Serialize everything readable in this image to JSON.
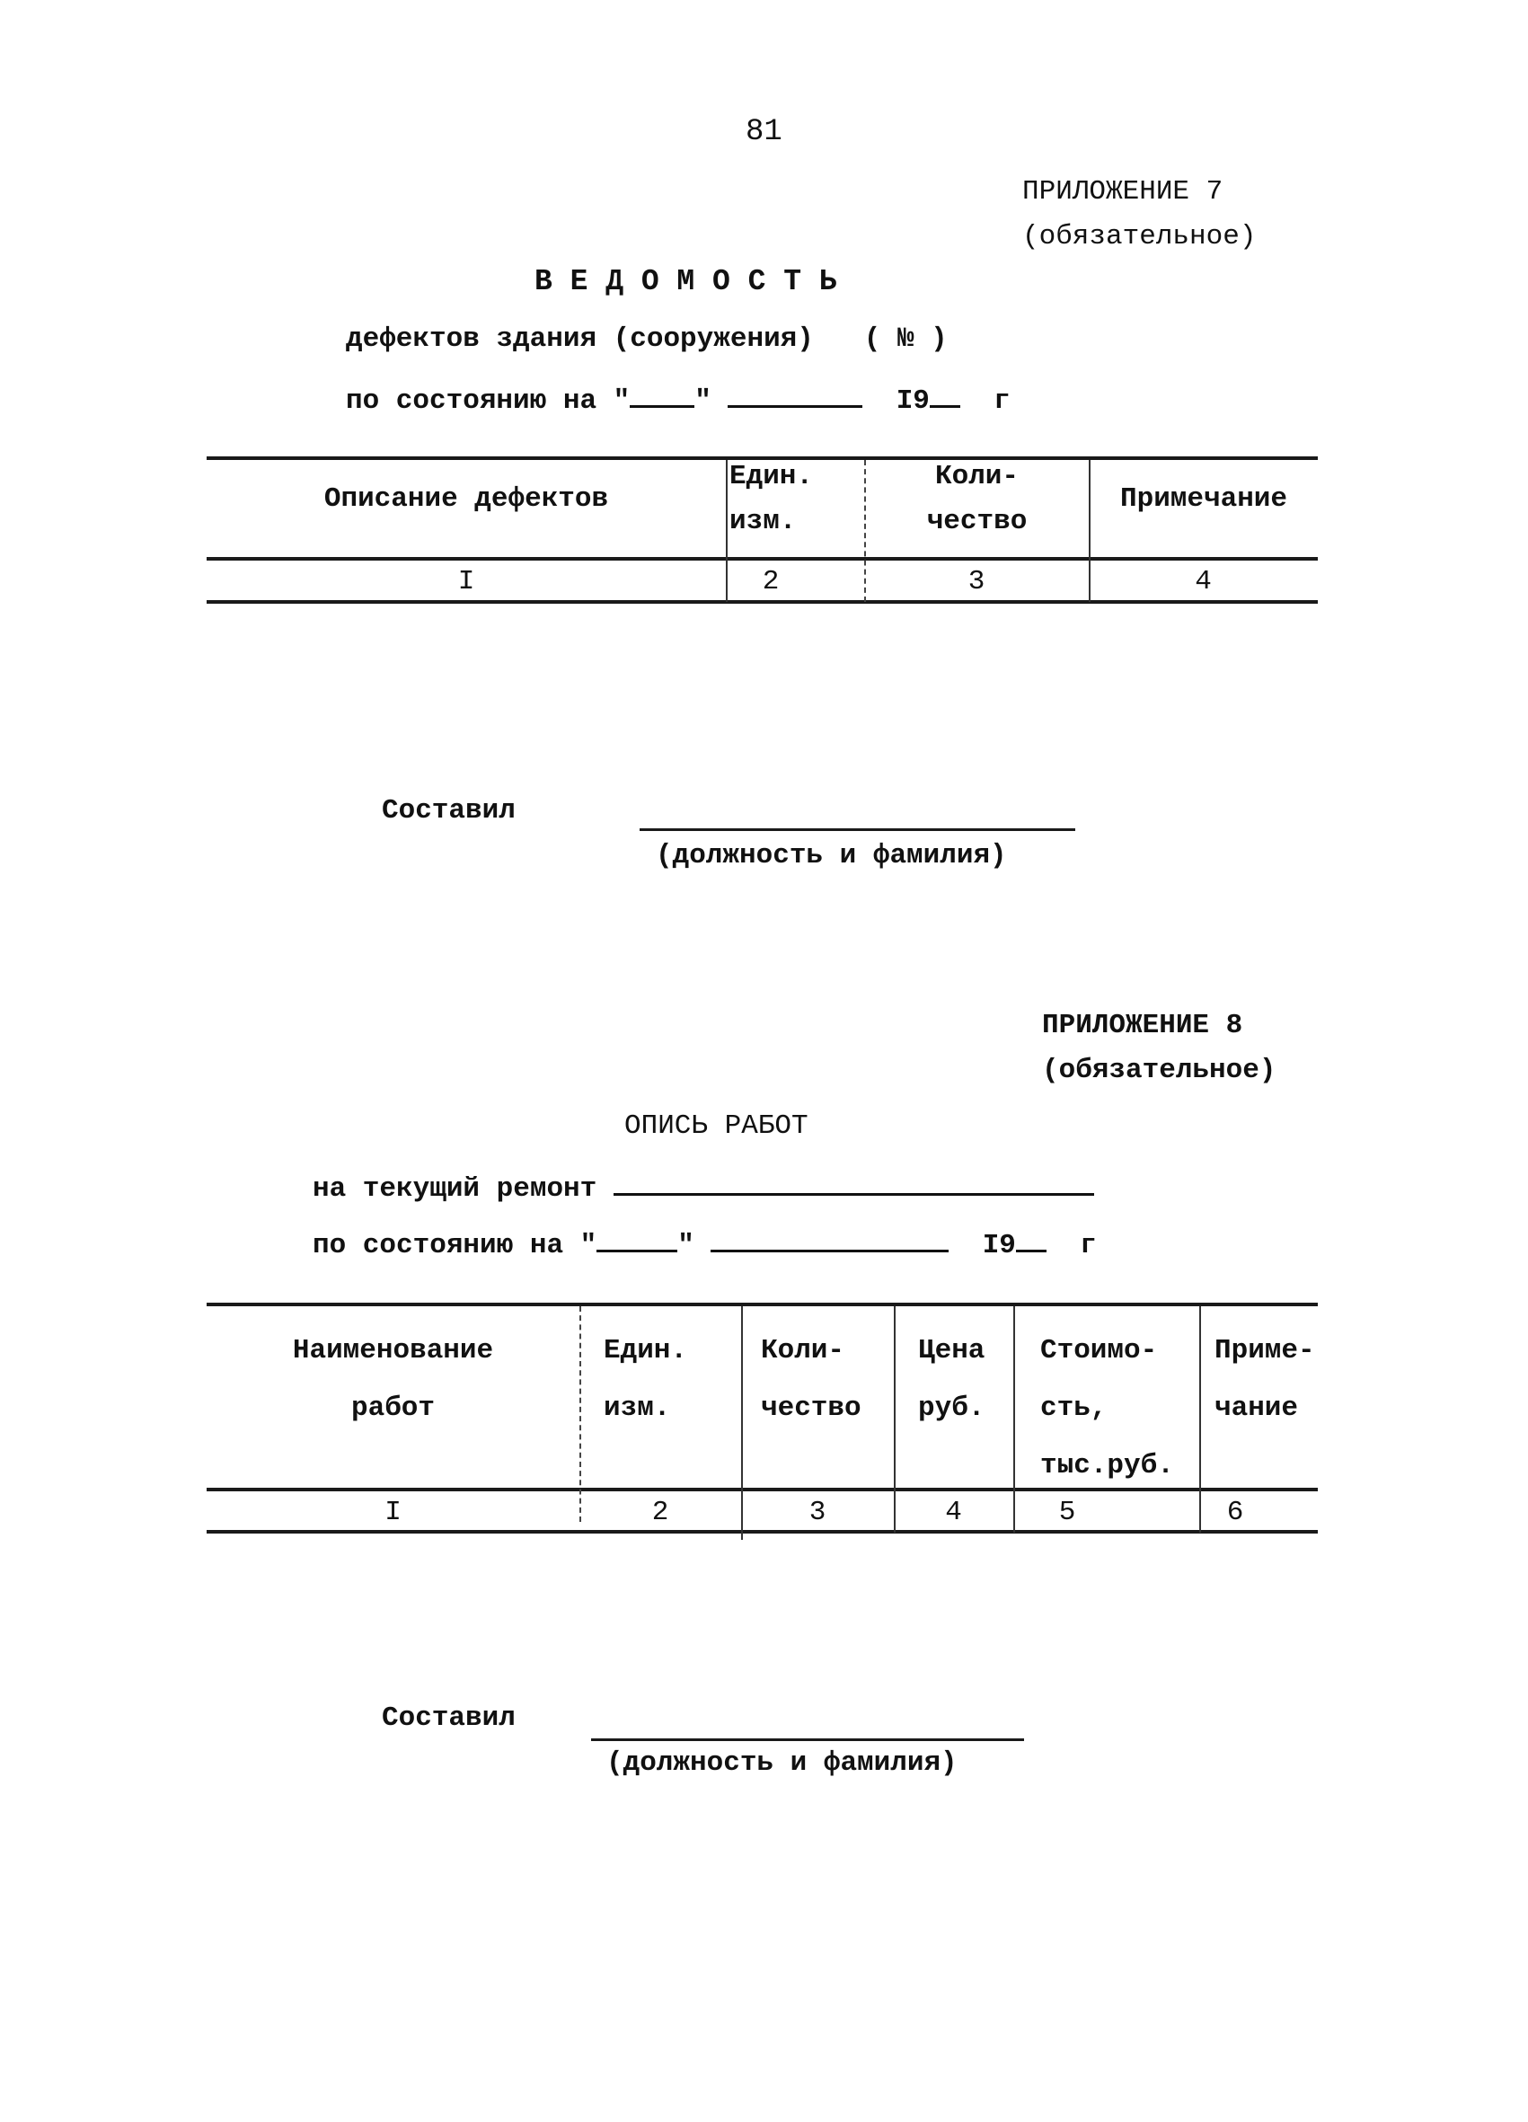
{
  "page_number": "81",
  "appendix7": {
    "label": "ПРИЛОЖЕНИЕ 7",
    "status": "(обязательное)",
    "title": "В Е Д О М О С Т Ь",
    "subtitle": "дефектов здания (сооружения)",
    "number_mark": "( № )",
    "date_prefix": "по состоянию на",
    "quote_open": "\"",
    "quote_close": "\"",
    "year_prefix": "I9",
    "year_suffix": "г",
    "table": {
      "headers": [
        [
          "Описание дефектов"
        ],
        [
          "Един.",
          "изм."
        ],
        [
          "Коли-",
          "чество"
        ],
        [
          "Примечание"
        ]
      ],
      "column_numbers": [
        "I",
        "2",
        "3",
        "4"
      ]
    },
    "compiled_label": "Составил",
    "signature_caption": "(должность и фамилия)"
  },
  "appendix8": {
    "label": "ПРИЛОЖЕНИЕ 8",
    "status": "(обязательное)",
    "title": "ОПИСЬ РАБОТ",
    "subtitle": "на текущий ремонт",
    "date_prefix": "по состоянию на",
    "quote_open": "\"",
    "quote_close": "\"",
    "year_prefix": "I9",
    "year_suffix": "г",
    "table": {
      "headers": [
        [
          "Наименование",
          "работ"
        ],
        [
          "Един.",
          "изм."
        ],
        [
          "Коли-",
          "чество"
        ],
        [
          "Цена",
          "руб."
        ],
        [
          "Стоимо-",
          "сть,",
          "тыс.руб."
        ],
        [
          "Приме-",
          "чание"
        ]
      ],
      "column_numbers": [
        "I",
        "2",
        "3",
        "4",
        "5",
        "6"
      ]
    },
    "compiled_label": "Составил",
    "signature_caption": "(должность и фамилия)"
  }
}
